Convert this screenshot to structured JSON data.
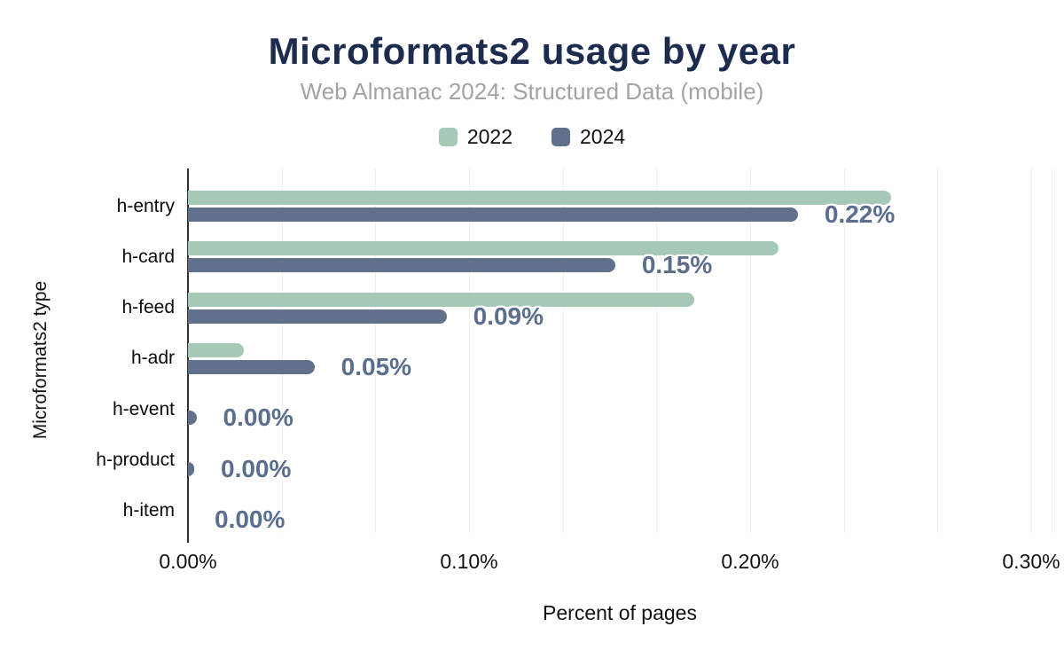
{
  "header": {
    "title": "Microformats2 usage by year",
    "subtitle": "Web Almanac 2024: Structured Data (mobile)"
  },
  "legend": [
    {
      "label": "2022",
      "color": "#a5c8b7"
    },
    {
      "label": "2024",
      "color": "#61718b"
    }
  ],
  "chart_data": {
    "type": "bar",
    "orientation": "horizontal",
    "title": "Microformats2 usage by year",
    "subtitle": "Web Almanac 2024: Structured Data (mobile)",
    "xlabel": "Percent of pages",
    "ylabel": "Microformats2 type",
    "categories": [
      "h-entry",
      "h-card",
      "h-feed",
      "h-adr",
      "h-event",
      "h-product",
      "h-item"
    ],
    "series": [
      {
        "name": "2022",
        "color": "#a5c8b7",
        "values": [
          0.25,
          0.21,
          0.18,
          0.02,
          0.0,
          0.0,
          0.0
        ]
      },
      {
        "name": "2024",
        "color": "#61718b",
        "values": [
          0.217,
          0.152,
          0.092,
          0.045,
          0.003,
          0.001,
          0.0
        ],
        "labels": [
          "0.22%",
          "0.15%",
          "0.09%",
          "0.05%",
          "0.00%",
          "0.00%",
          "0.00%"
        ]
      }
    ],
    "xlim": [
      0,
      0.3
    ],
    "xticks": {
      "values": [
        0,
        0.1,
        0.2,
        0.3
      ],
      "labels": [
        "0.00%",
        "0.10%",
        "0.20%",
        "0.30%"
      ]
    },
    "grid": true,
    "legend_position": "top",
    "value_label_color": "#5c6e8e",
    "title_color": "#1c2b4e",
    "subtitle_color": "#a3a3a3"
  }
}
